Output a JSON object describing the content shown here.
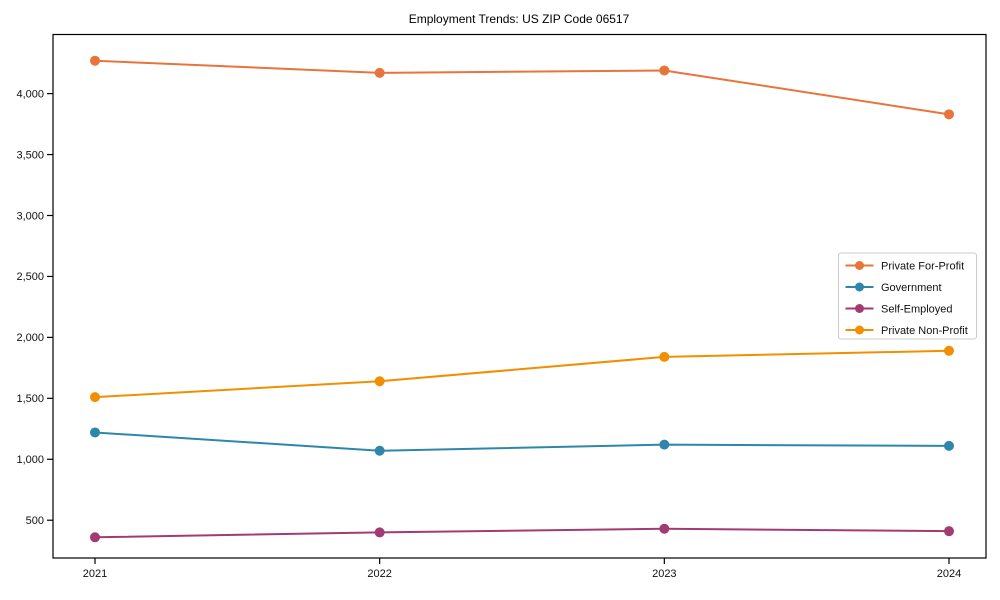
{
  "chart_data": {
    "type": "line",
    "title": "Employment Trends: US ZIP Code 06517",
    "categories": [
      "2021",
      "2022",
      "2023",
      "2024"
    ],
    "series": [
      {
        "name": "Private For-Profit",
        "color": "#E8743B",
        "values": [
          4270,
          4170,
          4190,
          3830
        ]
      },
      {
        "name": "Government",
        "color": "#2E86AB",
        "values": [
          1220,
          1070,
          1120,
          1110
        ]
      },
      {
        "name": "Self-Employed",
        "color": "#A23B72",
        "values": [
          360,
          400,
          430,
          410
        ]
      },
      {
        "name": "Private Non-Profit",
        "color": "#F18F01",
        "values": [
          1510,
          1640,
          1840,
          1890
        ]
      }
    ],
    "xlabel": "",
    "ylabel": "",
    "ylim": [
      190,
      4485
    ],
    "yticks": [
      {
        "value": 500,
        "label": "500"
      },
      {
        "value": 1000,
        "label": "1,000"
      },
      {
        "value": 1500,
        "label": "1,500"
      },
      {
        "value": 2000,
        "label": "2,000"
      },
      {
        "value": 2500,
        "label": "2,500"
      },
      {
        "value": 3000,
        "label": "3,000"
      },
      {
        "value": 3500,
        "label": "3,500"
      },
      {
        "value": 4000,
        "label": "4,000"
      }
    ],
    "grid": false,
    "legend_position": "center-right",
    "axis_color": "#000000",
    "legend_border_color": "#cccccc"
  }
}
